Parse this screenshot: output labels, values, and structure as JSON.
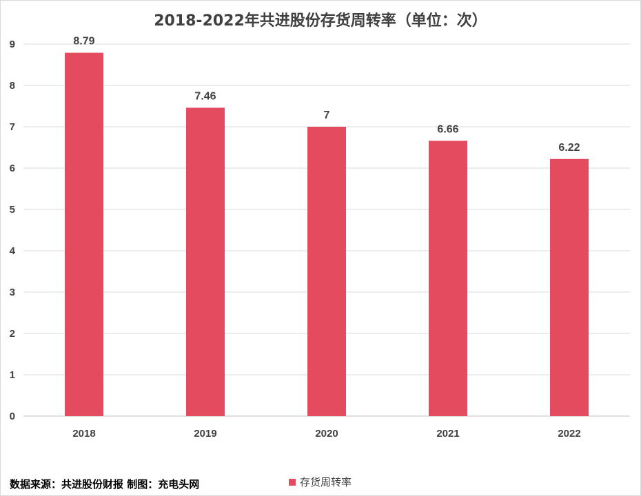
{
  "chart_data": {
    "type": "bar",
    "title": "2018-2022年共进股份存货周转率（单位：次）",
    "categories": [
      "2018",
      "2019",
      "2020",
      "2021",
      "2022"
    ],
    "series": [
      {
        "name": "存货周转率",
        "values": [
          8.79,
          7.46,
          7,
          6.66,
          6.22
        ],
        "data_labels": [
          "8.79",
          "7.46",
          "7",
          "6.66",
          "6.22"
        ],
        "color": "#e54b5e"
      }
    ],
    "ylim": [
      0,
      9
    ],
    "yticks": [
      "0",
      "1",
      "2",
      "3",
      "4",
      "5",
      "6",
      "7",
      "8",
      "9"
    ],
    "grid": true,
    "legend_position": "bottom"
  },
  "footer": {
    "source": "数据来源：共进股份财报  制图：充电头网"
  }
}
